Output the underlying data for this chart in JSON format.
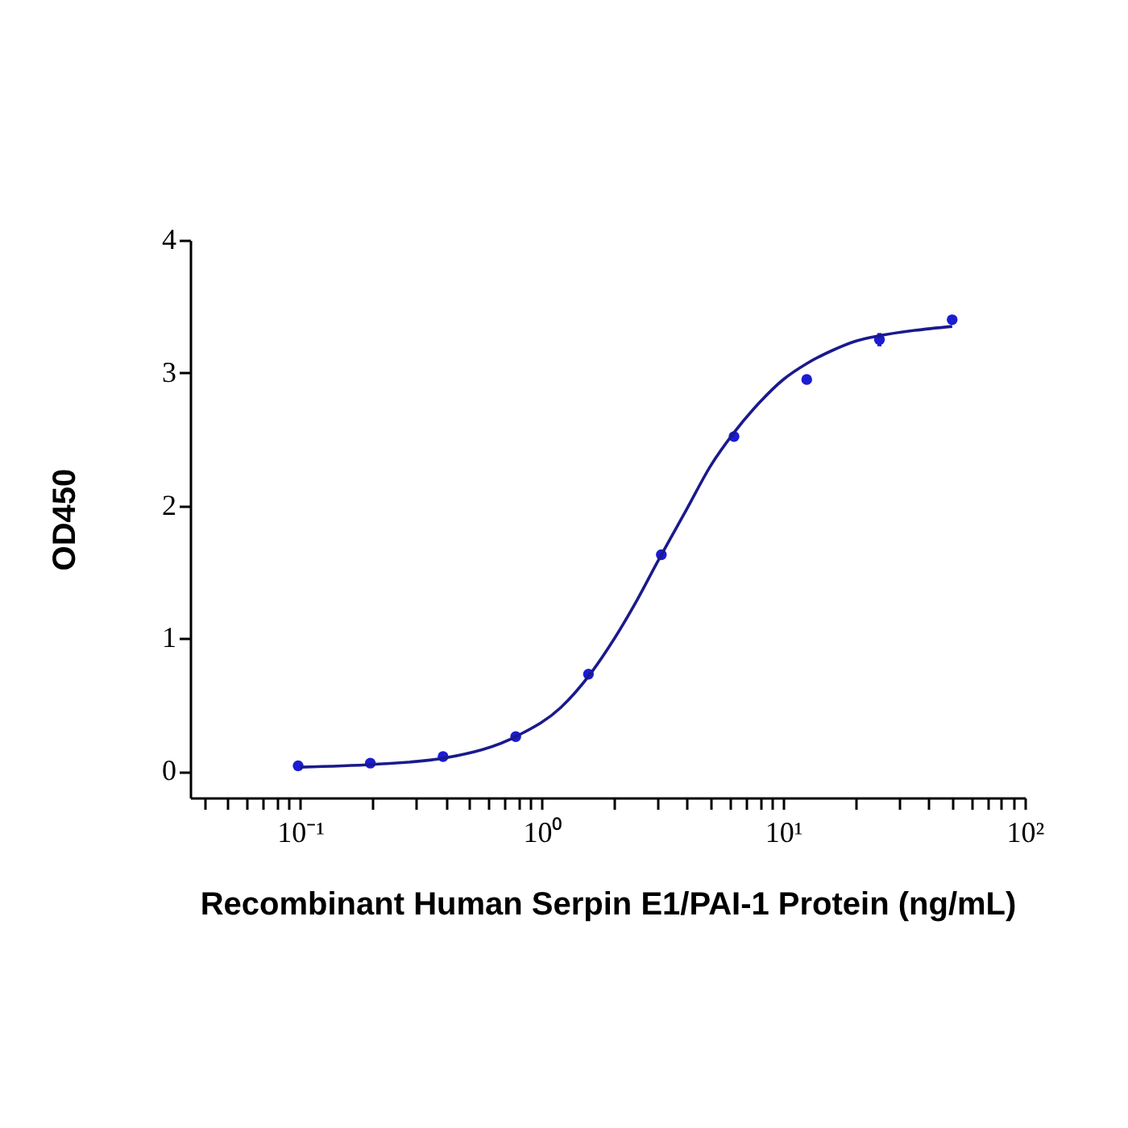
{
  "chart_data": {
    "type": "scatter",
    "xlabel": "Recombinant Human Serpin E1/PAI-1 Protein (ng/mL)",
    "ylabel": "OD450",
    "log": "x",
    "marker": "circle",
    "grid": false,
    "xlim": [
      0.035,
      100
    ],
    "ylim": [
      -0.2,
      4
    ],
    "yticks": [
      0,
      1,
      2,
      3,
      4
    ],
    "xticks": [
      {
        "value": 0.04,
        "label": null
      },
      {
        "value": 0.05,
        "label": null
      },
      {
        "value": 0.06,
        "label": null
      },
      {
        "value": 0.07,
        "label": null
      },
      {
        "value": 0.08,
        "label": null
      },
      {
        "value": 0.09,
        "label": null
      },
      {
        "value": 0.1,
        "label": "10⁻¹"
      },
      {
        "value": 0.2,
        "label": null
      },
      {
        "value": 0.3,
        "label": null
      },
      {
        "value": 0.4,
        "label": null
      },
      {
        "value": 0.5,
        "label": null
      },
      {
        "value": 0.6,
        "label": null
      },
      {
        "value": 0.7,
        "label": null
      },
      {
        "value": 0.8,
        "label": null
      },
      {
        "value": 0.9,
        "label": null
      },
      {
        "value": 1,
        "label": "10⁰"
      },
      {
        "value": 2,
        "label": null
      },
      {
        "value": 3,
        "label": null
      },
      {
        "value": 4,
        "label": null
      },
      {
        "value": 5,
        "label": null
      },
      {
        "value": 6,
        "label": null
      },
      {
        "value": 7,
        "label": null
      },
      {
        "value": 8,
        "label": null
      },
      {
        "value": 9,
        "label": null
      },
      {
        "value": 10,
        "label": "10¹"
      },
      {
        "value": 20,
        "label": null
      },
      {
        "value": 30,
        "label": null
      },
      {
        "value": 40,
        "label": null
      },
      {
        "value": 50,
        "label": null
      },
      {
        "value": 60,
        "label": null
      },
      {
        "value": 70,
        "label": null
      },
      {
        "value": 80,
        "label": null
      },
      {
        "value": 90,
        "label": null
      },
      {
        "value": 100,
        "label": "10²"
      }
    ],
    "series": [
      {
        "color": "#1c1cd2",
        "x": [
          0.098,
          0.195,
          0.39,
          0.78,
          1.56,
          3.125,
          6.25,
          12.5,
          25,
          50
        ],
        "values": [
          0.04,
          0.06,
          0.11,
          0.26,
          0.73,
          1.63,
          2.52,
          2.95,
          3.25,
          3.4
        ],
        "errors": [
          null,
          null,
          null,
          null,
          null,
          null,
          null,
          null,
          0.05,
          null
        ]
      },
      {
        "type": "line",
        "color": "#1a1a8c",
        "marker": "none",
        "x": [
          0.1,
          0.2,
          0.4,
          0.8,
          1.2,
          1.6,
          2,
          2.5,
          3,
          4,
          5,
          6.25,
          8,
          10,
          12.5,
          16,
          20,
          25,
          35,
          50
        ],
        "values": [
          0.03,
          0.05,
          0.1,
          0.27,
          0.48,
          0.74,
          1.0,
          1.3,
          1.57,
          1.98,
          2.3,
          2.55,
          2.78,
          2.95,
          3.07,
          3.17,
          3.24,
          3.28,
          3.32,
          3.35
        ]
      }
    ]
  }
}
